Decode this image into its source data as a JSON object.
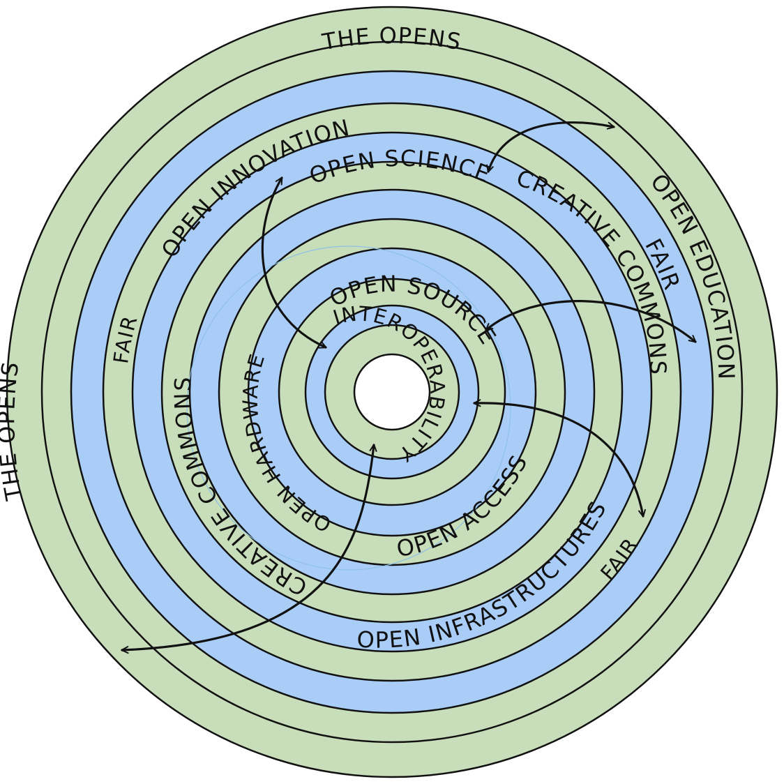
{
  "colors": {
    "green_band": "#c8ddb9",
    "blue_band": "#a9cdf7",
    "center": "#ffffff",
    "ink": "#111111"
  },
  "labels": {
    "the_opens_top": "THE OPENS",
    "the_opens_bottom": "THE OPENS",
    "open_innovation": "OPEN INNOVATION",
    "open_education": "OPEN EDUCATION",
    "open_science": "OPEN SCIENCE",
    "fair_right": "FAIR",
    "fair_left": "FAIR",
    "fair_bottom": "FAIR",
    "open_infrastructures": "OPEN INFRASTRUCTURES",
    "creative_commons_top": "CREATIVE COMMONS",
    "creative_commons_bottom": "CREATIVE COMMONS",
    "open_access": "OPEN ACCESS",
    "open_hardware": "OPEN HARDWARE",
    "open_source": "OPEN SOURCE",
    "interoperability": "INTEROPERABILITY"
  }
}
